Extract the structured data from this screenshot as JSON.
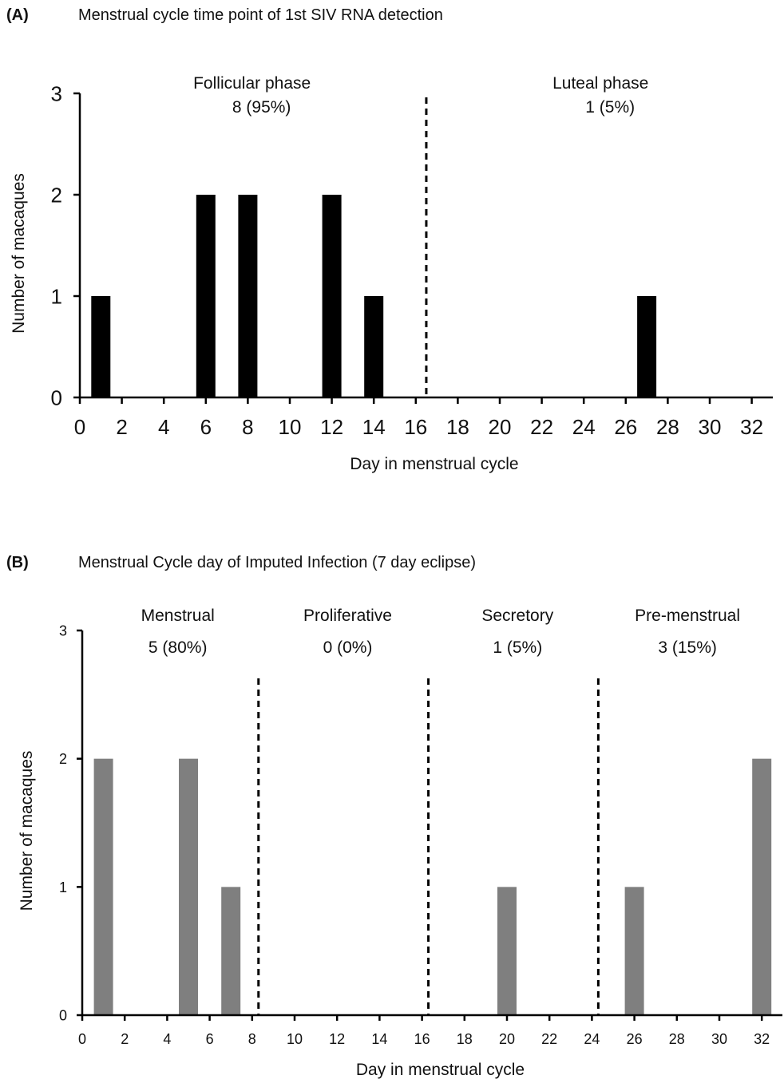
{
  "chart_data": [
    {
      "type": "bar",
      "panel_label": "(A)",
      "title": "Menstrual cycle time point of 1st SIV RNA detection",
      "xlabel": "Day in menstrual cycle",
      "ylabel": "Number of macaques",
      "xlim": [
        0,
        33
      ],
      "ylim": [
        0,
        3
      ],
      "xticks": [
        "0",
        "2",
        "4",
        "6",
        "8",
        "10",
        "12",
        "14",
        "16",
        "18",
        "20",
        "22",
        "24",
        "26",
        "28",
        "30",
        "32"
      ],
      "yticks": [
        "0",
        "1",
        "2",
        "3"
      ],
      "bar_color": "#000000",
      "series": [
        {
          "x": [
            1,
            6,
            8,
            12,
            14,
            27
          ],
          "values": [
            1,
            2,
            2,
            2,
            1,
            1
          ]
        }
      ],
      "dividers": [
        16.5
      ],
      "phases": [
        {
          "label": "Follicular  phase",
          "value": "8 (95%)",
          "center": 8.2
        },
        {
          "label": "Luteal phase",
          "value": "1 (5%)",
          "center": 24.8
        }
      ],
      "grid": false
    },
    {
      "type": "bar",
      "panel_label": "(B)",
      "title": "Menstrual Cycle day of Imputed Infection (7 day eclipse)",
      "xlabel": "Day in menstrual cycle",
      "ylabel": "Number of macaques",
      "xlim": [
        0,
        33
      ],
      "ylim": [
        0,
        3
      ],
      "xticks": [
        "0",
        "2",
        "4",
        "6",
        "8",
        "10",
        "12",
        "14",
        "16",
        "18",
        "20",
        "22",
        "24",
        "26",
        "28",
        "30",
        "32"
      ],
      "yticks": [
        "0",
        "1",
        "2",
        "3"
      ],
      "bar_color": "#7f7f7f",
      "series": [
        {
          "x": [
            1,
            5,
            7,
            20,
            26,
            32
          ],
          "values": [
            2,
            2,
            1,
            1,
            1,
            2
          ]
        }
      ],
      "dividers": [
        8.3,
        16.3,
        24.3
      ],
      "phases": [
        {
          "label": "Menstrual",
          "value": "5 (80%)",
          "center": 4.5
        },
        {
          "label": "Proliferative",
          "value": "0 (0%)",
          "center": 12.5
        },
        {
          "label": "Secretory",
          "value": "1 (5%)",
          "center": 20.5
        },
        {
          "label": "Pre-menstrual",
          "value": "3 (15%)",
          "center": 28.5
        }
      ],
      "grid": false
    }
  ]
}
